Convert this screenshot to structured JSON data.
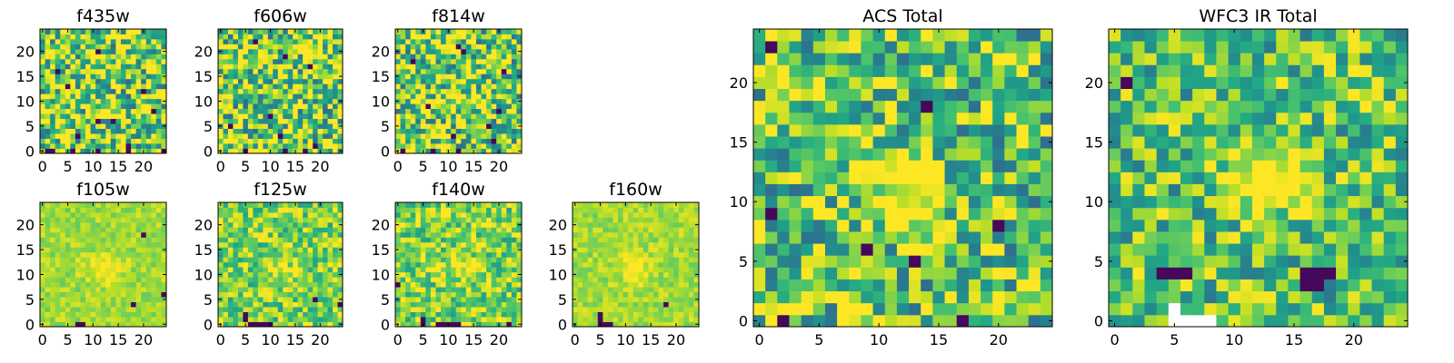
{
  "chart_data": [
    {
      "type": "heatmap",
      "title": "f435w",
      "xticks": [
        "0",
        "5",
        "10",
        "15",
        "20"
      ],
      "yticks": [
        "0",
        "5",
        "10",
        "15",
        "20"
      ],
      "xlim": [
        0,
        25
      ],
      "ylim": [
        0,
        25
      ],
      "grid_size": 25,
      "colormap": "viridis",
      "style": "noisy",
      "source_blob": null,
      "dark_pixels": [
        [
          1,
          0
        ],
        [
          2,
          0
        ],
        [
          6,
          0
        ],
        [
          11,
          0
        ],
        [
          17,
          0
        ],
        [
          24,
          0
        ],
        [
          17,
          1
        ],
        [
          7,
          3
        ],
        [
          11,
          6
        ],
        [
          14,
          6
        ],
        [
          5,
          13
        ],
        [
          20,
          12
        ],
        [
          22,
          8
        ],
        [
          11,
          20
        ],
        [
          3,
          16
        ]
      ]
    },
    {
      "type": "heatmap",
      "title": "f606w",
      "xticks": [
        "0",
        "5",
        "10",
        "15",
        "20"
      ],
      "yticks": [
        "0",
        "5",
        "10",
        "15",
        "20"
      ],
      "xlim": [
        0,
        25
      ],
      "ylim": [
        0,
        25
      ],
      "grid_size": 25,
      "colormap": "viridis",
      "style": "noisy",
      "source_blob": [
        12,
        11
      ],
      "dark_pixels": [
        [
          5,
          0
        ],
        [
          13,
          0
        ],
        [
          17,
          0
        ],
        [
          19,
          1
        ],
        [
          12,
          3
        ],
        [
          2,
          5
        ],
        [
          10,
          7
        ],
        [
          13,
          19
        ],
        [
          18,
          17
        ],
        [
          7,
          22
        ]
      ]
    },
    {
      "type": "heatmap",
      "title": "f814w",
      "xticks": [
        "0",
        "5",
        "10",
        "15",
        "20"
      ],
      "yticks": [
        "0",
        "5",
        "10",
        "15",
        "20"
      ],
      "xlim": [
        0,
        25
      ],
      "ylim": [
        0,
        25
      ],
      "grid_size": 25,
      "colormap": "viridis",
      "style": "noisy",
      "source_blob": [
        13,
        11
      ],
      "dark_pixels": [
        [
          1,
          0
        ],
        [
          7,
          0
        ],
        [
          12,
          0
        ],
        [
          19,
          2
        ],
        [
          11,
          3
        ],
        [
          18,
          5
        ],
        [
          20,
          8
        ],
        [
          6,
          9
        ],
        [
          13,
          20
        ],
        [
          12,
          21
        ],
        [
          3,
          18
        ],
        [
          21,
          16
        ]
      ]
    },
    {
      "type": "heatmap",
      "title": "f105w",
      "xticks": [
        "0",
        "5",
        "10",
        "15",
        "20"
      ],
      "yticks": [
        "0",
        "5",
        "10",
        "15",
        "20"
      ],
      "xlim": [
        0,
        25
      ],
      "ylim": [
        0,
        25
      ],
      "grid_size": 25,
      "colormap": "viridis",
      "style": "smooth",
      "source_blob": [
        12,
        11
      ],
      "dark_pixels": [
        [
          7,
          0
        ],
        [
          8,
          0
        ],
        [
          18,
          4
        ],
        [
          24,
          6
        ],
        [
          20,
          18
        ]
      ]
    },
    {
      "type": "heatmap",
      "title": "f125w",
      "xticks": [
        "0",
        "5",
        "10",
        "15",
        "20"
      ],
      "yticks": [
        "0",
        "5",
        "10",
        "15",
        "20"
      ],
      "xlim": [
        0,
        25
      ],
      "ylim": [
        0,
        25
      ],
      "grid_size": 25,
      "colormap": "viridis",
      "style": "medium",
      "source_blob": [
        12,
        11
      ],
      "dark_pixels": [
        [
          6,
          0
        ],
        [
          7,
          0
        ],
        [
          8,
          0
        ],
        [
          9,
          0
        ],
        [
          10,
          0
        ],
        [
          5,
          1
        ],
        [
          5,
          2
        ],
        [
          19,
          5
        ],
        [
          24,
          4
        ]
      ]
    },
    {
      "type": "heatmap",
      "title": "f140w",
      "xticks": [
        "0",
        "5",
        "10",
        "15",
        "20"
      ],
      "yticks": [
        "0",
        "5",
        "10",
        "15",
        "20"
      ],
      "xlim": [
        0,
        25
      ],
      "ylim": [
        0,
        25
      ],
      "grid_size": 25,
      "colormap": "viridis",
      "style": "medium",
      "source_blob": [
        12,
        11
      ],
      "dark_pixels": [
        [
          5,
          0
        ],
        [
          8,
          0
        ],
        [
          9,
          0
        ],
        [
          10,
          0
        ],
        [
          11,
          0
        ],
        [
          12,
          0
        ],
        [
          5,
          1
        ],
        [
          22,
          0
        ],
        [
          0,
          8
        ]
      ]
    },
    {
      "type": "heatmap",
      "title": "f160w",
      "xticks": [
        "0",
        "5",
        "10",
        "15",
        "20"
      ],
      "yticks": [
        "0",
        "5",
        "10",
        "15",
        "20"
      ],
      "xlim": [
        0,
        25
      ],
      "ylim": [
        0,
        25
      ],
      "grid_size": 25,
      "colormap": "viridis",
      "style": "smooth",
      "source_blob": [
        12,
        11
      ],
      "dark_pixels": [
        [
          5,
          0
        ],
        [
          6,
          0
        ],
        [
          7,
          0
        ],
        [
          5,
          1
        ],
        [
          5,
          2
        ],
        [
          18,
          4
        ]
      ]
    },
    {
      "type": "heatmap",
      "title": "ACS Total",
      "xticks": [
        "0",
        "5",
        "10",
        "15",
        "20"
      ],
      "yticks": [
        "0",
        "5",
        "10",
        "15",
        "20"
      ],
      "xlim": [
        0,
        25
      ],
      "ylim": [
        0,
        25
      ],
      "grid_size": 25,
      "colormap": "viridis",
      "style": "coarse",
      "source_blob": [
        12,
        11
      ],
      "dark_pixels": [
        [
          2,
          0
        ],
        [
          17,
          0
        ],
        [
          13,
          5
        ],
        [
          9,
          6
        ],
        [
          1,
          9
        ],
        [
          20,
          8
        ],
        [
          14,
          18
        ],
        [
          1,
          23
        ]
      ]
    },
    {
      "type": "heatmap",
      "title": "WFC3 IR Total",
      "xticks": [
        "0",
        "5",
        "10",
        "15",
        "20"
      ],
      "yticks": [
        "0",
        "5",
        "10",
        "15",
        "20"
      ],
      "xlim": [
        0,
        25
      ],
      "ylim": [
        0,
        25
      ],
      "grid_size": 25,
      "colormap": "viridis",
      "style": "wfc3",
      "source_blob": [
        13,
        12
      ],
      "dark_pixels": [
        [
          4,
          4
        ],
        [
          5,
          4
        ],
        [
          6,
          4
        ],
        [
          16,
          4
        ],
        [
          17,
          4
        ],
        [
          18,
          4
        ],
        [
          16,
          3
        ],
        [
          17,
          3
        ],
        [
          1,
          20
        ]
      ],
      "white_pixels": [
        [
          5,
          1
        ],
        [
          5,
          0
        ],
        [
          6,
          0
        ],
        [
          7,
          0
        ],
        [
          8,
          0
        ]
      ]
    }
  ]
}
